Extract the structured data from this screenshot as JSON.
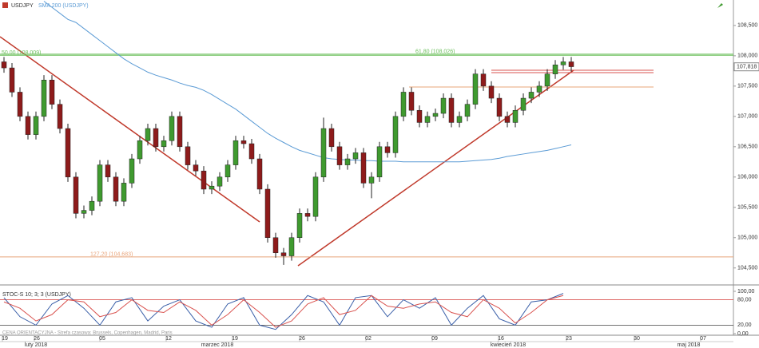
{
  "chart_data": {
    "type": "candlestick",
    "symbol": "USDJPY",
    "up_color": "#3f9a2f",
    "down_color": "#8e1b1b",
    "ylim": [
      104.22,
      108.92
    ],
    "yticks": [
      {
        "value": 108.5,
        "label": "108,500"
      },
      {
        "value": 108,
        "label": "108,000"
      },
      {
        "value": 107.5,
        "label": "107,500"
      },
      {
        "value": 107,
        "label": "107,000"
      },
      {
        "value": 106.5,
        "label": "106,500"
      },
      {
        "value": 106,
        "label": "106,000"
      },
      {
        "value": 105.5,
        "label": "105,500"
      },
      {
        "value": 105,
        "label": "105,000"
      },
      {
        "value": 104.5,
        "label": "104,500"
      }
    ],
    "grid": false,
    "last_price": {
      "value": 107.818,
      "label": "107,818"
    },
    "candles": [
      [
        107.9,
        107.98,
        107.72,
        107.8
      ],
      [
        107.8,
        107.88,
        107.32,
        107.4
      ],
      [
        107.4,
        107.48,
        106.92,
        107.0
      ],
      [
        107.0,
        107.08,
        106.62,
        106.7
      ],
      [
        106.7,
        107.08,
        106.62,
        107.0
      ],
      [
        107.0,
        107.68,
        106.92,
        107.6
      ],
      [
        107.6,
        107.68,
        107.12,
        107.2
      ],
      [
        107.2,
        107.28,
        106.72,
        106.8
      ],
      [
        106.8,
        106.88,
        105.92,
        106.0
      ],
      [
        106.0,
        106.08,
        105.32,
        105.4
      ],
      [
        105.4,
        105.53,
        105.32,
        105.45
      ],
      [
        105.45,
        105.68,
        105.37,
        105.6
      ],
      [
        105.6,
        106.28,
        105.52,
        106.2
      ],
      [
        106.2,
        106.28,
        105.92,
        106.0
      ],
      [
        106.0,
        106.08,
        105.52,
        105.6
      ],
      [
        105.6,
        105.98,
        105.52,
        105.9
      ],
      [
        105.9,
        106.38,
        105.82,
        106.3
      ],
      [
        106.3,
        106.68,
        106.22,
        106.6
      ],
      [
        106.6,
        106.88,
        106.52,
        106.8
      ],
      [
        106.8,
        106.88,
        106.42,
        106.5
      ],
      [
        106.5,
        106.68,
        106.42,
        106.6
      ],
      [
        106.6,
        107.08,
        106.52,
        107.0
      ],
      [
        107.0,
        107.08,
        106.42,
        106.5
      ],
      [
        106.5,
        106.58,
        106.12,
        106.2
      ],
      [
        106.2,
        106.28,
        106.02,
        106.1
      ],
      [
        106.1,
        106.18,
        105.72,
        105.8
      ],
      [
        105.8,
        105.93,
        105.72,
        105.85
      ],
      [
        105.85,
        106.08,
        105.77,
        106.0
      ],
      [
        106.0,
        106.28,
        105.92,
        106.2
      ],
      [
        106.2,
        106.68,
        106.12,
        106.6
      ],
      [
        106.6,
        106.68,
        106.47,
        106.55
      ],
      [
        106.55,
        106.63,
        106.22,
        106.3
      ],
      [
        106.3,
        106.38,
        105.72,
        105.8
      ],
      [
        105.8,
        105.88,
        104.92,
        105.0
      ],
      [
        105.0,
        105.08,
        104.67,
        104.75
      ],
      [
        104.75,
        104.83,
        104.55,
        104.7
      ],
      [
        104.7,
        105.08,
        104.62,
        105.0
      ],
      [
        105.0,
        105.48,
        104.92,
        105.4
      ],
      [
        105.4,
        105.48,
        105.27,
        105.35
      ],
      [
        105.35,
        106.08,
        105.27,
        106.0
      ],
      [
        106.0,
        106.98,
        105.92,
        106.8
      ],
      [
        106.8,
        106.88,
        106.42,
        106.5
      ],
      [
        106.5,
        106.58,
        106.12,
        106.2
      ],
      [
        106.2,
        106.38,
        106.12,
        106.3
      ],
      [
        106.3,
        106.48,
        106.22,
        106.4
      ],
      [
        106.4,
        106.48,
        105.82,
        105.9
      ],
      [
        105.9,
        106.08,
        105.65,
        106.0
      ],
      [
        106.0,
        106.58,
        105.92,
        106.5
      ],
      [
        106.5,
        106.58,
        106.32,
        106.4
      ],
      [
        106.4,
        107.08,
        106.32,
        107.0
      ],
      [
        107.0,
        107.48,
        106.92,
        107.4
      ],
      [
        107.4,
        107.48,
        107.02,
        107.1
      ],
      [
        107.1,
        107.18,
        106.82,
        106.9
      ],
      [
        106.9,
        107.08,
        106.82,
        107.0
      ],
      [
        107.0,
        107.13,
        106.92,
        107.05
      ],
      [
        107.05,
        107.38,
        106.97,
        107.3
      ],
      [
        107.3,
        107.38,
        106.82,
        106.9
      ],
      [
        106.9,
        107.08,
        106.82,
        107.0
      ],
      [
        107.0,
        107.28,
        106.92,
        107.2
      ],
      [
        107.2,
        107.78,
        107.12,
        107.7
      ],
      [
        107.7,
        107.78,
        107.42,
        107.5
      ],
      [
        107.5,
        107.58,
        107.22,
        107.3
      ],
      [
        107.3,
        107.38,
        106.92,
        107.0
      ],
      [
        107.0,
        107.08,
        106.82,
        106.9
      ],
      [
        106.9,
        107.18,
        106.82,
        107.1
      ],
      [
        107.1,
        107.38,
        107.02,
        107.3
      ],
      [
        107.3,
        107.48,
        107.22,
        107.4
      ],
      [
        107.4,
        107.58,
        107.32,
        107.5
      ],
      [
        107.5,
        107.78,
        107.42,
        107.7
      ],
      [
        107.7,
        107.93,
        107.62,
        107.85
      ],
      [
        107.85,
        107.98,
        107.77,
        107.9
      ],
      [
        107.9,
        107.98,
        107.74,
        107.82
      ]
    ],
    "sma": {
      "name": "SMA 200 (USDJPY)",
      "color": "#5b9bd5",
      "values": [
        null,
        null,
        null,
        null,
        null,
        108.9,
        108.8,
        108.7,
        108.6,
        108.55,
        108.45,
        108.35,
        108.25,
        108.15,
        108.05,
        107.95,
        107.87,
        107.8,
        107.73,
        107.68,
        107.64,
        107.6,
        107.55,
        107.51,
        107.48,
        107.43,
        107.36,
        107.28,
        107.2,
        107.12,
        107.02,
        106.92,
        106.82,
        106.72,
        106.64,
        106.57,
        106.5,
        106.44,
        106.4,
        106.36,
        106.32,
        106.3,
        106.29,
        106.28,
        106.28,
        106.27,
        106.27,
        106.26,
        106.26,
        106.26,
        106.25,
        106.25,
        106.25,
        106.25,
        106.25,
        106.25,
        106.25,
        106.25,
        106.26,
        106.27,
        106.28,
        106.29,
        106.31,
        106.34,
        106.36,
        106.38,
        106.4,
        106.42,
        106.44,
        106.47,
        106.5,
        106.53
      ]
    },
    "levels": [
      {
        "label": "50,00 (108,009)",
        "value": 108.009,
        "color": "#6cbf5c"
      },
      {
        "label": "61,80 (108,026)",
        "value": 108.026,
        "color": "#6cbf5c"
      },
      {
        "label": "127,20 (104,683)",
        "value": 104.683,
        "color": "#e8a47a"
      }
    ],
    "stoch": {
      "name": "STOC-S 10; 3; 3 (USDJPY)",
      "ylim": [
        -3.8,
        109.4
      ],
      "yticks": [
        {
          "value": 100,
          "label": "100,00"
        },
        {
          "value": 80,
          "label": "80,00"
        },
        {
          "value": 20,
          "label": "20,00"
        },
        {
          "value": 0,
          "label": "0,00"
        }
      ],
      "series": [
        {
          "color": "#3a5fa8",
          "values": [
            85,
            40,
            20,
            70,
            90,
            60,
            20,
            75,
            85,
            30,
            65,
            80,
            30,
            15,
            70,
            85,
            20,
            10,
            45,
            90,
            75,
            20,
            85,
            90,
            40,
            80,
            60,
            85,
            20,
            60,
            90,
            35,
            20,
            75,
            80,
            95
          ]
        },
        {
          "color": "#d9534f",
          "values": [
            75,
            60,
            30,
            45,
            80,
            75,
            40,
            50,
            80,
            55,
            50,
            75,
            55,
            20,
            45,
            80,
            50,
            15,
            30,
            70,
            85,
            45,
            55,
            90,
            65,
            60,
            70,
            75,
            50,
            40,
            80,
            60,
            25,
            50,
            80,
            90
          ]
        }
      ]
    },
    "footer": "CENA ORIENTACYJNA - Strefa czasowa: Brussels, Copenhagen, Madrid, Paris",
    "x_labels": [
      "19",
      "26",
      "05",
      "12",
      "19",
      "26",
      "02",
      "09",
      "16",
      "23",
      "30",
      "07"
    ],
    "month_labels": [
      "luty 2018",
      "marzec 2018",
      "kwiecień 2018",
      "maj 2018"
    ]
  }
}
